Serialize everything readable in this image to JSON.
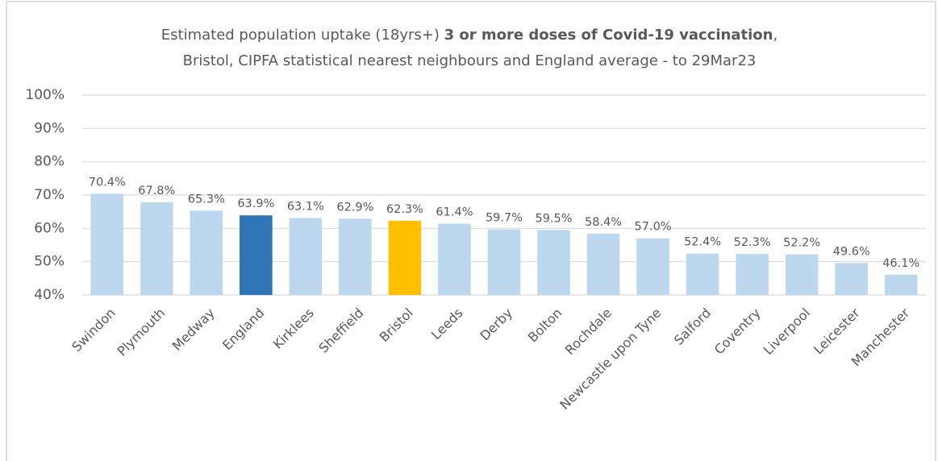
{
  "chart_data": {
    "type": "bar",
    "title": [
      "Estimated population uptake (18yrs+)",
      "3 or more doses of Covid-19 vaccination",
      ","
    ],
    "subtitle": "Bristol, CIPFA statistical nearest neighbours and England average - to 29Mar23",
    "categories": [
      "Swindon",
      "Plymouth",
      "Medway",
      "England",
      "Kirklees",
      "Sheffield",
      "Bristol",
      "Leeds",
      "Derby",
      "Bolton",
      "Rochdale",
      "Newcastle upon Tyne",
      "Salford",
      "Coventry",
      "Liverpool",
      "Leicester",
      "Manchester"
    ],
    "values": [
      70.4,
      67.8,
      65.3,
      63.9,
      63.1,
      62.9,
      62.3,
      61.4,
      59.7,
      59.5,
      58.4,
      57.0,
      52.4,
      52.3,
      52.2,
      49.6,
      46.1
    ],
    "value_labels": [
      "70.4%",
      "67.8%",
      "65.3%",
      "63.9%",
      "63.1%",
      "62.9%",
      "62.3%",
      "61.4%",
      "59.7%",
      "59.5%",
      "58.4%",
      "57.0%",
      "52.4%",
      "52.3%",
      "52.2%",
      "49.6%",
      "46.1%"
    ],
    "colors": [
      "#bdd7ee",
      "#bdd7ee",
      "#bdd7ee",
      "#2e75b6",
      "#bdd7ee",
      "#bdd7ee",
      "#ffc000",
      "#bdd7ee",
      "#bdd7ee",
      "#bdd7ee",
      "#bdd7ee",
      "#bdd7ee",
      "#bdd7ee",
      "#bdd7ee",
      "#bdd7ee",
      "#bdd7ee",
      "#bdd7ee"
    ],
    "ylim": [
      40,
      100
    ],
    "yticks": [
      {
        "value": 40,
        "label": "40%"
      },
      {
        "value": 50,
        "label": "50%"
      },
      {
        "value": 60,
        "label": "60%"
      },
      {
        "value": 70,
        "label": "70%"
      },
      {
        "value": 80,
        "label": "80%"
      },
      {
        "value": 90,
        "label": "90%"
      },
      {
        "value": 100,
        "label": "100%"
      }
    ],
    "grid": true
  }
}
